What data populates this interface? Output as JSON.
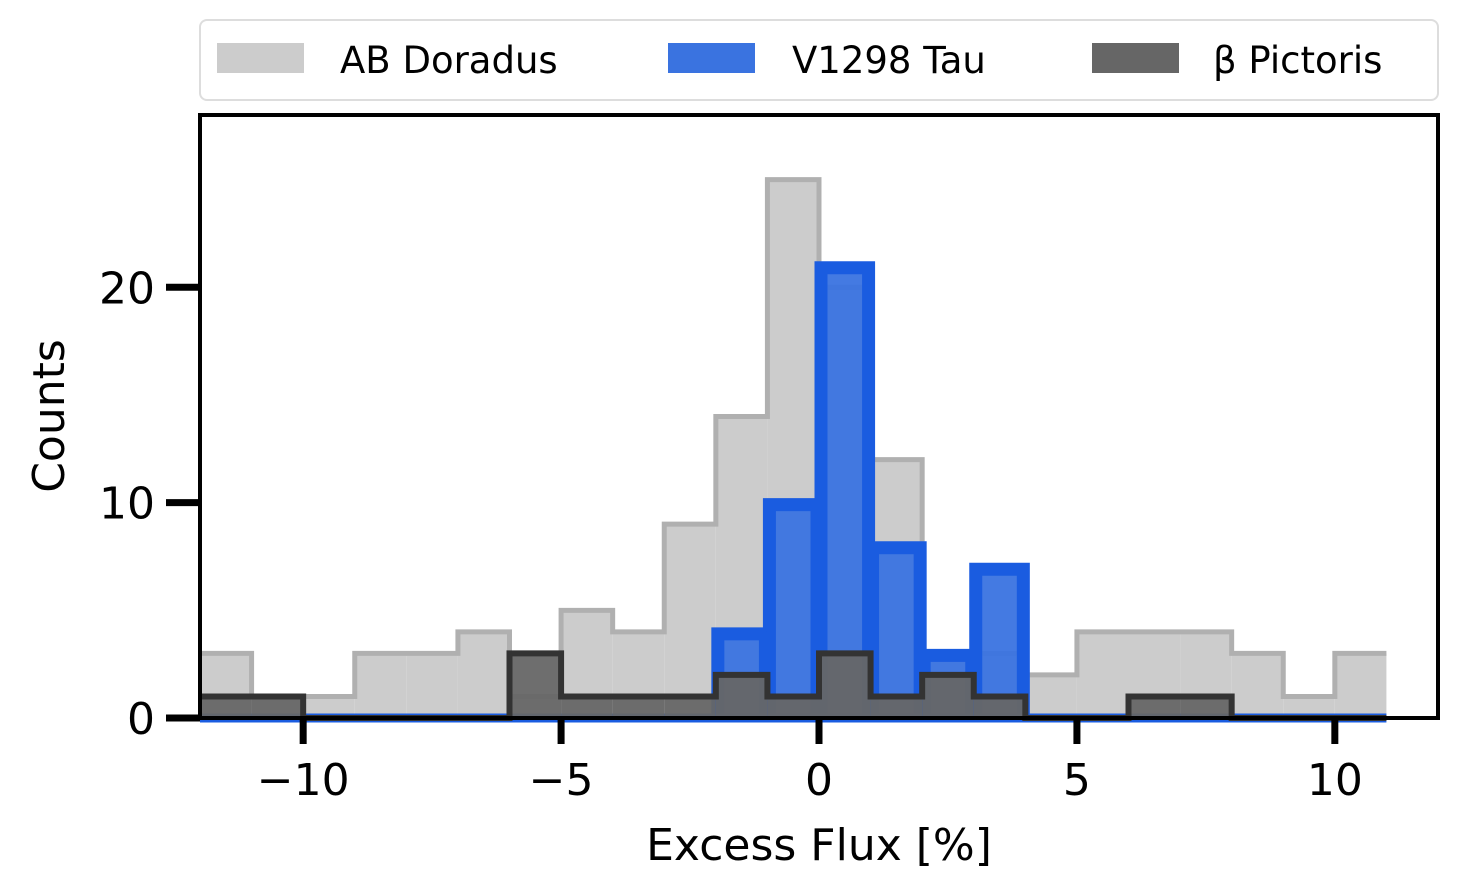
{
  "chart_data": {
    "type": "histogram",
    "xlabel": "Excess Flux [%]",
    "ylabel": "Counts",
    "xlim": [
      -12,
      12
    ],
    "ylim": [
      0,
      28
    ],
    "x_ticks": [
      -10,
      -5,
      0,
      5,
      10
    ],
    "x_tick_labels": [
      "−10",
      "−5",
      "0",
      "5",
      "10"
    ],
    "y_ticks": [
      0,
      10,
      20
    ],
    "y_tick_labels": [
      "0",
      "10",
      "20"
    ],
    "grid": false,
    "legend_placement": "top, above plot, 3 columns",
    "bin_edges": [
      -12,
      -11,
      -10,
      -9,
      -8,
      -7,
      -6,
      -5,
      -4,
      -3,
      -2,
      -1,
      0,
      1,
      2,
      3,
      4,
      5,
      6,
      7,
      8,
      9,
      10,
      11
    ],
    "series": [
      {
        "name": "AB Doradus",
        "fill": "#cccccc",
        "edge": "#b0b0b0",
        "counts": [
          3,
          1,
          1,
          3,
          3,
          4,
          1,
          5,
          4,
          9,
          14,
          25,
          20,
          12,
          3,
          3,
          2,
          4,
          4,
          4,
          3,
          1,
          3
        ]
      },
      {
        "name": "V1298 Tau",
        "fill": "#3a73e0",
        "edge": "#1a5ce0",
        "counts": [
          0,
          0,
          0,
          0,
          0,
          0,
          0,
          0,
          0,
          0,
          4,
          10,
          21,
          8,
          3,
          7,
          0,
          0,
          0,
          0,
          0,
          0,
          0
        ]
      },
      {
        "name": "β Pictoris",
        "fill": "#666666",
        "edge": "#333333",
        "counts": [
          1,
          1,
          0,
          0,
          0,
          0,
          3,
          1,
          1,
          1,
          2,
          1,
          3,
          1,
          2,
          1,
          0,
          0,
          1,
          1,
          0,
          0,
          0
        ]
      }
    ]
  }
}
